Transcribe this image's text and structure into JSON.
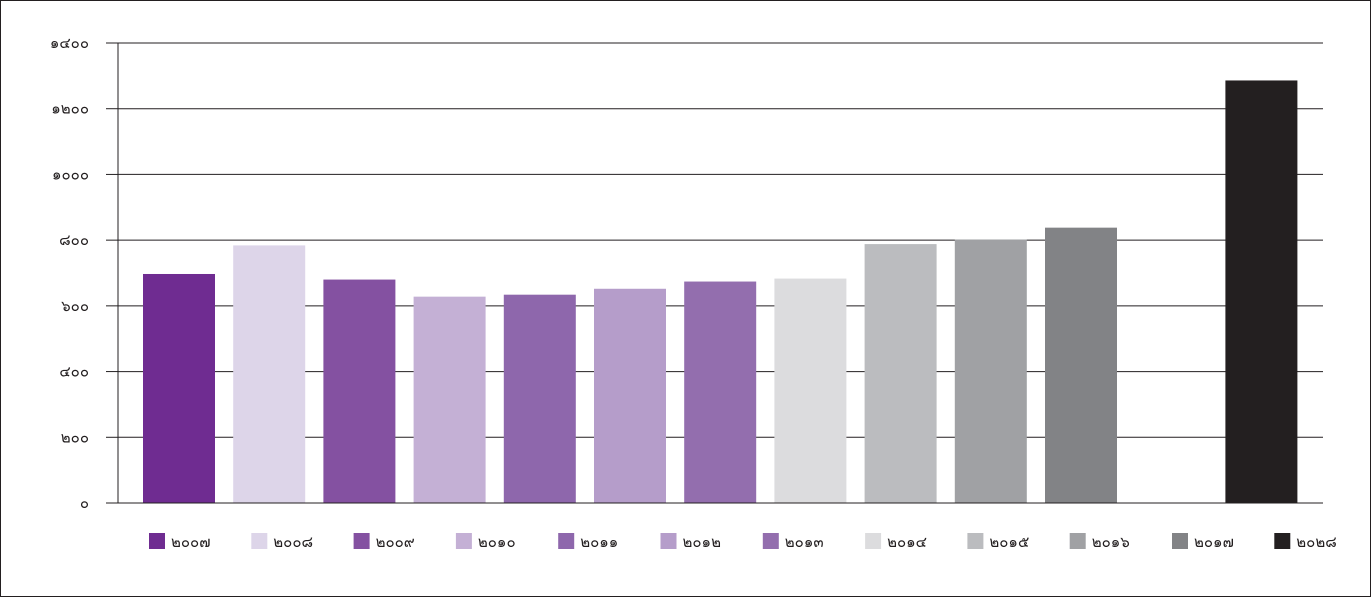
{
  "chart_data": {
    "type": "bar",
    "title": "",
    "xlabel": "",
    "ylabel": "",
    "ylim": [
      0,
      1400
    ],
    "y_ticks": [
      {
        "value": 0,
        "label": "๐"
      },
      {
        "value": 200,
        "label": "๒๐๐"
      },
      {
        "value": 400,
        "label": "๔๐๐"
      },
      {
        "value": 600,
        "label": "๖๐๐"
      },
      {
        "value": 800,
        "label": "๘๐๐"
      },
      {
        "value": 1000,
        "label": "๑๐๐๐"
      },
      {
        "value": 1200,
        "label": "๑๒๐๐"
      },
      {
        "value": 1400,
        "label": "๑๔๐๐"
      }
    ],
    "grid": true,
    "legend_position": "bottom",
    "categories": [
      "๒๐๐๗",
      "๒๐๐๘",
      "๒๐๐๙",
      "๒๐๑๐",
      "๒๐๑๑",
      "๒๐๑๒",
      "๒๐๑๓",
      "๒๐๑๔",
      "๒๐๑๕",
      "๒๐๑๖",
      "๒๐๑๗",
      "๒๐๒๘"
    ],
    "values": [
      697,
      784,
      680,
      628,
      634,
      652,
      674,
      683,
      788,
      802,
      838,
      1286
    ],
    "colors": [
      "#6f2c91",
      "#ddd5e9",
      "#8451a1",
      "#c4b0d5",
      "#8e67ac",
      "#b59dca",
      "#936eae",
      "#dcdcde",
      "#bbbcbf",
      "#a0a1a4",
      "#828386",
      "#231f20"
    ],
    "slot_positions": [
      0,
      1,
      2,
      3,
      4,
      5,
      6,
      7,
      8,
      9,
      10,
      12
    ]
  }
}
